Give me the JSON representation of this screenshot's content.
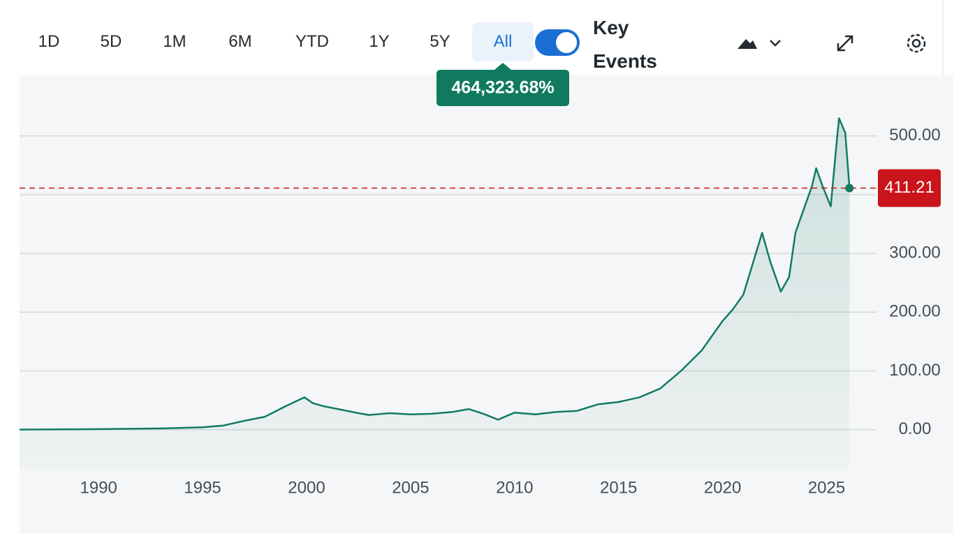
{
  "toolbar": {
    "ranges": [
      "1D",
      "5D",
      "1M",
      "6M",
      "YTD",
      "1Y",
      "5Y",
      "All"
    ],
    "active_range_index": 7,
    "toggle_label": "Key Events",
    "toggle_on": true
  },
  "chart_data": {
    "type": "line",
    "change_label": "464,323.68%",
    "x": [
      1986.2,
      1990,
      1993,
      1995,
      1996,
      1997,
      1998,
      1999,
      1999.9,
      2000.3,
      2000.8,
      2001.5,
      2002.5,
      2003,
      2004,
      2005,
      2006,
      2007,
      2007.8,
      2008.5,
      2009.2,
      2010,
      2011,
      2012,
      2013,
      2014,
      2015,
      2016,
      2017,
      2018,
      2019,
      2020,
      2020.5,
      2021,
      2021.9,
      2022.3,
      2022.8,
      2023.2,
      2023.5,
      2023.9,
      2024.3,
      2024.5,
      2024.8,
      2025.2,
      2025.5,
      2025.6,
      2025.9,
      2026.1
    ],
    "series": [
      {
        "name": "Price",
        "color": "#137a63",
        "values": [
          0.1,
          0.8,
          2,
          4,
          7,
          15,
          22,
          40,
          55,
          45,
          40,
          35,
          28,
          25,
          28,
          26,
          27,
          30,
          35,
          27,
          17,
          29,
          26,
          30,
          32,
          43,
          47,
          55,
          70,
          100,
          135,
          185,
          205,
          230,
          335,
          285,
          235,
          260,
          335,
          375,
          415,
          445,
          415,
          380,
          495,
          530,
          505,
          411.21
        ]
      }
    ],
    "xlim": [
      1986.2,
      2027.4
    ],
    "xticks": [
      1990,
      1995,
      2000,
      2005,
      2010,
      2015,
      2020,
      2025
    ],
    "ylim": [
      -67,
      603
    ],
    "yticks": [
      {
        "value": 0,
        "label": "0.00"
      },
      {
        "value": 100,
        "label": "100.00"
      },
      {
        "value": 200,
        "label": "200.00"
      },
      {
        "value": 300,
        "label": "300.00"
      },
      {
        "value": 400,
        "label": "400.00"
      },
      {
        "value": 500,
        "label": "500.00"
      }
    ],
    "grid": true,
    "last_value_color": "#c8141a"
  }
}
